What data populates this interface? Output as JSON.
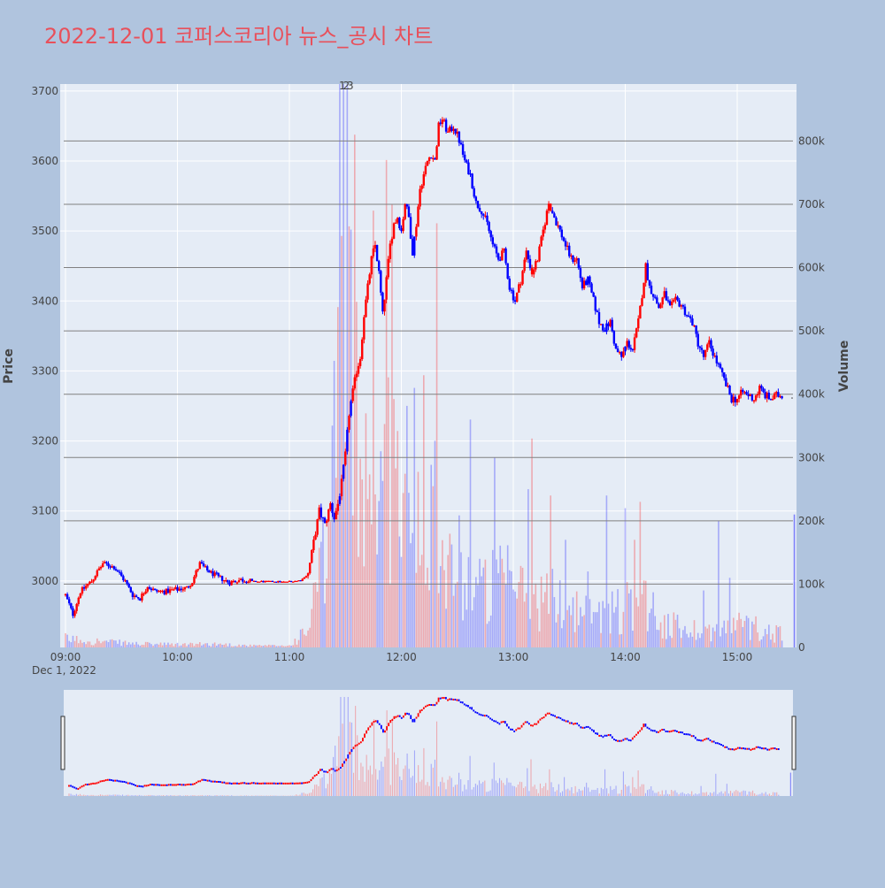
{
  "title": "2022-12-01 코퍼스코리아 뉴스_공시 차트",
  "colors": {
    "background": "#b0c4de",
    "plot_bg": "#e5ecf6",
    "grid": "#ffffff",
    "volume_grid": "#808080",
    "title": "#e8505b",
    "up": "#ff0000",
    "down": "#0000ff",
    "text": "#444444"
  },
  "chart_data": {
    "type": "candlestick",
    "date_label": "Dec 1, 2022",
    "x_tick_labels": [
      "09:00",
      "10:00",
      "11:00",
      "12:00",
      "13:00",
      "14:00",
      "15:00"
    ],
    "price_axis": {
      "label": "Price",
      "range": [
        2905,
        3710
      ],
      "ticks": [
        3000,
        3100,
        3200,
        3300,
        3400,
        3500,
        3600,
        3700
      ]
    },
    "volume_axis": {
      "label": "Volume",
      "range": [
        0,
        890000
      ],
      "ticks": [
        0,
        100000,
        200000,
        300000,
        400000,
        500000,
        600000,
        700000,
        800000
      ],
      "tick_labels": [
        "0",
        "100k",
        "200k",
        "300k",
        "400k",
        "500k",
        "600k",
        "700k",
        "800k"
      ]
    },
    "annotations": [
      {
        "text": "1",
        "time": "11:28"
      },
      {
        "text": "2",
        "time": "11:29"
      },
      {
        "text": "3",
        "time": "11:31"
      }
    ],
    "price_path": [
      [
        "09:00",
        2980
      ],
      [
        "09:04",
        2952
      ],
      [
        "09:08",
        2985
      ],
      [
        "09:14",
        3000
      ],
      [
        "09:20",
        3025
      ],
      [
        "09:26",
        3020
      ],
      [
        "09:32",
        3000
      ],
      [
        "09:36",
        2980
      ],
      [
        "09:40",
        2975
      ],
      [
        "09:44",
        2993
      ],
      [
        "09:48",
        2985
      ],
      [
        "09:54",
        2985
      ],
      [
        "10:00",
        2988
      ],
      [
        "10:05",
        2990
      ],
      [
        "10:08",
        3000
      ],
      [
        "10:12",
        3025
      ],
      [
        "10:16",
        3015
      ],
      [
        "10:22",
        3005
      ],
      [
        "10:28",
        2998
      ],
      [
        "10:34",
        3002
      ],
      [
        "10:40",
        2999
      ],
      [
        "10:50",
        2999
      ],
      [
        "11:00",
        2999
      ],
      [
        "11:06",
        3001
      ],
      [
        "11:10",
        3010
      ],
      [
        "11:14",
        3070
      ],
      [
        "11:16",
        3100
      ],
      [
        "11:19",
        3080
      ],
      [
        "11:22",
        3110
      ],
      [
        "11:24",
        3090
      ],
      [
        "11:26",
        3110
      ],
      [
        "11:28",
        3140
      ],
      [
        "11:30",
        3180
      ],
      [
        "11:32",
        3240
      ],
      [
        "11:34",
        3270
      ],
      [
        "11:36",
        3300
      ],
      [
        "11:38",
        3320
      ],
      [
        "11:40",
        3380
      ],
      [
        "11:42",
        3420
      ],
      [
        "11:44",
        3460
      ],
      [
        "11:46",
        3480
      ],
      [
        "11:48",
        3440
      ],
      [
        "11:50",
        3380
      ],
      [
        "11:52",
        3430
      ],
      [
        "11:54",
        3480
      ],
      [
        "11:56",
        3510
      ],
      [
        "11:58",
        3520
      ],
      [
        "12:00",
        3500
      ],
      [
        "12:02",
        3540
      ],
      [
        "12:04",
        3520
      ],
      [
        "12:06",
        3470
      ],
      [
        "12:08",
        3510
      ],
      [
        "12:10",
        3560
      ],
      [
        "12:12",
        3580
      ],
      [
        "12:14",
        3600
      ],
      [
        "12:16",
        3610
      ],
      [
        "12:18",
        3600
      ],
      [
        "12:20",
        3650
      ],
      [
        "12:22",
        3660
      ],
      [
        "12:25",
        3640
      ],
      [
        "12:28",
        3650
      ],
      [
        "12:31",
        3630
      ],
      [
        "12:34",
        3600
      ],
      [
        "12:37",
        3580
      ],
      [
        "12:40",
        3540
      ],
      [
        "12:43",
        3530
      ],
      [
        "12:46",
        3510
      ],
      [
        "12:49",
        3480
      ],
      [
        "12:52",
        3460
      ],
      [
        "12:55",
        3470
      ],
      [
        "12:58",
        3420
      ],
      [
        "13:01",
        3400
      ],
      [
        "13:04",
        3430
      ],
      [
        "13:07",
        3470
      ],
      [
        "13:10",
        3440
      ],
      [
        "13:13",
        3460
      ],
      [
        "13:16",
        3500
      ],
      [
        "13:19",
        3540
      ],
      [
        "13:22",
        3520
      ],
      [
        "13:25",
        3500
      ],
      [
        "13:28",
        3480
      ],
      [
        "13:31",
        3460
      ],
      [
        "13:34",
        3460
      ],
      [
        "13:37",
        3420
      ],
      [
        "13:40",
        3430
      ],
      [
        "13:43",
        3400
      ],
      [
        "13:46",
        3370
      ],
      [
        "13:49",
        3360
      ],
      [
        "13:52",
        3370
      ],
      [
        "13:55",
        3330
      ],
      [
        "13:58",
        3320
      ],
      [
        "14:01",
        3340
      ],
      [
        "14:04",
        3330
      ],
      [
        "14:07",
        3370
      ],
      [
        "14:09",
        3410
      ],
      [
        "14:11",
        3450
      ],
      [
        "14:13",
        3420
      ],
      [
        "14:15",
        3410
      ],
      [
        "14:18",
        3390
      ],
      [
        "14:21",
        3410
      ],
      [
        "14:24",
        3390
      ],
      [
        "14:27",
        3400
      ],
      [
        "14:30",
        3395
      ],
      [
        "14:33",
        3380
      ],
      [
        "14:36",
        3370
      ],
      [
        "14:39",
        3340
      ],
      [
        "14:42",
        3320
      ],
      [
        "14:45",
        3340
      ],
      [
        "14:48",
        3320
      ],
      [
        "14:51",
        3300
      ],
      [
        "14:54",
        3280
      ],
      [
        "14:57",
        3260
      ],
      [
        "15:00",
        3260
      ],
      [
        "15:03",
        3270
      ],
      [
        "15:06",
        3265
      ],
      [
        "15:09",
        3260
      ],
      [
        "15:12",
        3275
      ],
      [
        "15:15",
        3265
      ],
      [
        "15:18",
        3260
      ],
      [
        "15:21",
        3265
      ],
      [
        "15:24",
        3265
      ]
    ],
    "volume_profile": [
      [
        "09:00",
        15000
      ],
      [
        "09:20",
        10000
      ],
      [
        "09:40",
        6000
      ],
      [
        "10:00",
        5000
      ],
      [
        "10:20",
        6000
      ],
      [
        "10:40",
        3000
      ],
      [
        "11:00",
        3000
      ],
      [
        "11:10",
        30000
      ],
      [
        "11:15",
        110000
      ],
      [
        "11:20",
        150000
      ],
      [
        "11:25",
        400000
      ],
      [
        "11:30",
        500000
      ],
      [
        "11:35",
        400000
      ],
      [
        "11:40",
        350000
      ],
      [
        "11:45",
        330000
      ],
      [
        "11:50",
        300000
      ],
      [
        "11:55",
        320000
      ],
      [
        "12:00",
        280000
      ],
      [
        "12:05",
        260000
      ],
      [
        "12:10",
        280000
      ],
      [
        "12:15",
        300000
      ],
      [
        "12:20",
        260000
      ],
      [
        "12:25",
        150000
      ],
      [
        "12:30",
        150000
      ],
      [
        "12:35",
        120000
      ],
      [
        "12:40",
        110000
      ],
      [
        "12:45",
        100000
      ],
      [
        "12:50",
        110000
      ],
      [
        "13:00",
        110000
      ],
      [
        "13:10",
        80000
      ],
      [
        "13:20",
        90000
      ],
      [
        "13:30",
        70000
      ],
      [
        "13:40",
        60000
      ],
      [
        "13:50",
        60000
      ],
      [
        "14:00",
        70000
      ],
      [
        "14:05",
        80000
      ],
      [
        "14:10",
        90000
      ],
      [
        "14:20",
        40000
      ],
      [
        "14:30",
        35000
      ],
      [
        "14:40",
        30000
      ],
      [
        "14:50",
        30000
      ],
      [
        "15:00",
        40000
      ],
      [
        "15:10",
        35000
      ],
      [
        "15:20",
        25000
      ],
      [
        "15:25",
        30000
      ]
    ],
    "volume_spikes": [
      [
        "11:27",
        900000,
        "down"
      ],
      [
        "11:28",
        650000,
        "up"
      ],
      [
        "11:29",
        900000,
        "down"
      ],
      [
        "11:31",
        900000,
        "down"
      ],
      [
        "11:33",
        660000,
        "down"
      ],
      [
        "11:35",
        810000,
        "up"
      ],
      [
        "11:45",
        690000,
        "up"
      ],
      [
        "11:52",
        770000,
        "up"
      ],
      [
        "11:55",
        700000,
        "up"
      ],
      [
        "12:07",
        410000,
        "down"
      ],
      [
        "12:12",
        430000,
        "up"
      ],
      [
        "12:19",
        670000,
        "up"
      ],
      [
        "12:37",
        360000,
        "down"
      ],
      [
        "12:50",
        300000,
        "down"
      ],
      [
        "13:08",
        250000,
        "down"
      ],
      [
        "13:10",
        330000,
        "up"
      ],
      [
        "13:20",
        240000,
        "up"
      ],
      [
        "13:28",
        170000,
        "down"
      ],
      [
        "13:40",
        120000,
        "down"
      ],
      [
        "13:50",
        240000,
        "down"
      ],
      [
        "14:00",
        220000,
        "down"
      ],
      [
        "14:05",
        170000,
        "up"
      ],
      [
        "14:08",
        230000,
        "up"
      ],
      [
        "14:42",
        90000,
        "down"
      ],
      [
        "14:50",
        200000,
        "down"
      ],
      [
        "14:56",
        110000,
        "down"
      ]
    ],
    "last_bar": {
      "time": "15:30",
      "volume": 210000,
      "direction": "down"
    }
  }
}
